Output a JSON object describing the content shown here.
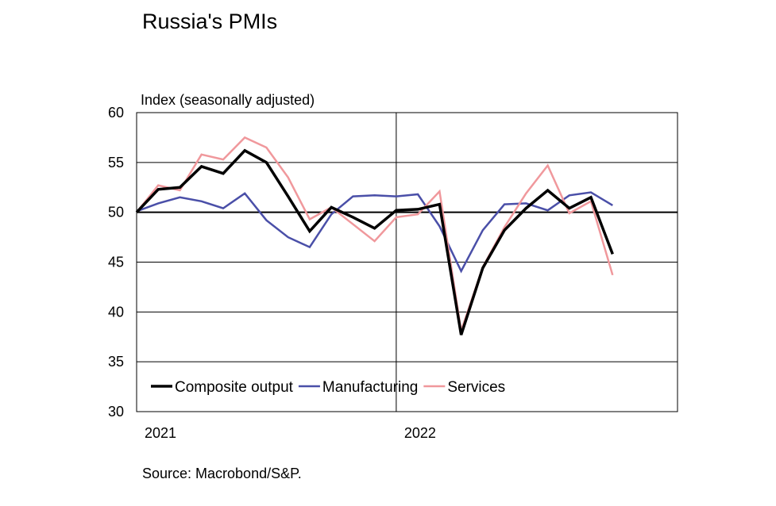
{
  "chart_data": {
    "type": "line",
    "title": "Russia's PMIs",
    "ylabel": "Index (seasonally adjusted)",
    "source": "Source: Macrobond/S&P.",
    "ylim": [
      30,
      60
    ],
    "yticks": [
      30,
      35,
      40,
      45,
      50,
      55,
      60
    ],
    "x": [
      "2021-01",
      "2021-02",
      "2021-03",
      "2021-04",
      "2021-05",
      "2021-06",
      "2021-07",
      "2021-08",
      "2021-09",
      "2021-10",
      "2021-11",
      "2021-12",
      "2022-01",
      "2022-02",
      "2022-03",
      "2022-04",
      "2022-05",
      "2022-06",
      "2022-07",
      "2022-08",
      "2022-09",
      "2022-10",
      "2022-11",
      "2022-12",
      "2023-01",
      "2023-02"
    ],
    "xlim": [
      "2021-01",
      "2023-02"
    ],
    "x_tick_labels": [
      {
        "label": "2021",
        "x": "2021-01"
      },
      {
        "label": "2022",
        "x": "2022-01"
      }
    ],
    "reference_line": 50,
    "grid": true,
    "legend_position": "bottom-left",
    "series": [
      {
        "name": "Composite output",
        "color": "#000000",
        "values": [
          50.0,
          52.3,
          52.5,
          54.6,
          53.9,
          56.2,
          55.0,
          51.6,
          48.1,
          50.5,
          49.5,
          48.4,
          50.2,
          50.3,
          50.8,
          37.7,
          44.4,
          48.2,
          50.4,
          52.2,
          50.4,
          51.5,
          45.8,
          null,
          null,
          null
        ]
      },
      {
        "name": "Manufacturing",
        "color": "#4a4fa8",
        "values": [
          50.1,
          50.9,
          51.5,
          51.1,
          50.4,
          51.9,
          49.2,
          47.5,
          46.5,
          49.8,
          51.6,
          51.7,
          51.6,
          51.8,
          48.6,
          44.1,
          48.2,
          50.8,
          50.9,
          50.2,
          51.7,
          52.0,
          50.7,
          null,
          null,
          null
        ]
      },
      {
        "name": "Services",
        "color": "#f0989c",
        "values": [
          50.0,
          52.7,
          52.2,
          55.8,
          55.3,
          57.5,
          56.5,
          53.5,
          49.3,
          50.5,
          48.8,
          47.1,
          49.5,
          49.8,
          52.1,
          38.1,
          44.5,
          48.5,
          51.9,
          54.7,
          49.9,
          51.1,
          43.7,
          null,
          null,
          null
        ]
      }
    ]
  }
}
